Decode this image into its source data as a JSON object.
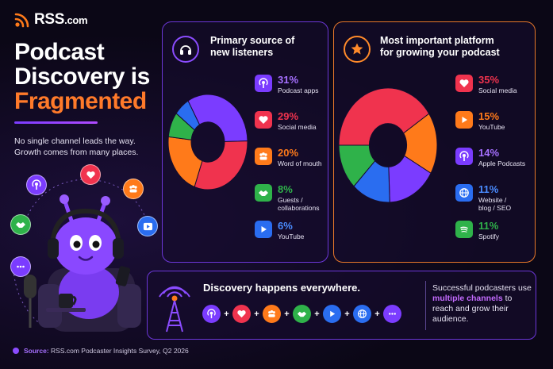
{
  "brand": {
    "name": "RSS",
    "suffix": ".com"
  },
  "title": {
    "line1": "Podcast",
    "line2": "Discovery is",
    "line3": "Fragmented"
  },
  "subtitle": "No single channel leads the way. Growth comes from many places.",
  "colors": {
    "purple": "#7b3cff",
    "red": "#f0334e",
    "orange": "#ff7a1a",
    "green": "#2fb24a",
    "blue": "#2a6df0",
    "accent_orange": "#ff7a2a"
  },
  "chart_data": [
    {
      "type": "pie",
      "title": "Primary source of new listeners",
      "categories": [
        "Podcast apps",
        "Social media",
        "Word of mouth",
        "Guests / collaborations",
        "YouTube"
      ],
      "values": [
        31,
        29,
        20,
        8,
        6
      ],
      "value_labels": [
        "31%",
        "29%",
        "20%",
        "8%",
        "6%"
      ],
      "colors": [
        "#7b3cff",
        "#f0334e",
        "#ff7a1a",
        "#2fb24a",
        "#2a6df0"
      ],
      "icons": [
        "podcast-icon",
        "heart-icon",
        "people-icon",
        "handshake-icon",
        "play-icon"
      ]
    },
    {
      "type": "pie",
      "title": "Most important platform for growing your podcast",
      "categories": [
        "Social media",
        "YouTube",
        "Apple Podcasts",
        "Website / blog / SEO",
        "Spotify"
      ],
      "values": [
        35,
        15,
        14,
        11,
        11
      ],
      "value_labels": [
        "35%",
        "15%",
        "14%",
        "11%",
        "11%"
      ],
      "colors": [
        "#f0334e",
        "#ff7a1a",
        "#7b3cff",
        "#2a6df0",
        "#2fb24a"
      ],
      "icons": [
        "heart-icon",
        "play-icon",
        "podcast-icon",
        "globe-icon",
        "spotify-icon"
      ]
    }
  ],
  "panel1": {
    "title_l1": "Primary source of",
    "title_l2": "new listeners",
    "items": [
      {
        "value": "31%",
        "label_l1": "Podcast apps",
        "label_l2": ""
      },
      {
        "value": "29%",
        "label_l1": "Social media",
        "label_l2": ""
      },
      {
        "value": "20%",
        "label_l1": "Word of mouth",
        "label_l2": ""
      },
      {
        "value": "8%",
        "label_l1": "Guests /",
        "label_l2": "collaborations"
      },
      {
        "value": "6%",
        "label_l1": "YouTube",
        "label_l2": ""
      }
    ]
  },
  "panel2": {
    "title_l1": "Most important platform",
    "title_l2": "for growing your podcast",
    "items": [
      {
        "value": "35%",
        "label_l1": "Social media",
        "label_l2": ""
      },
      {
        "value": "15%",
        "label_l1": "YouTube",
        "label_l2": ""
      },
      {
        "value": "14%",
        "label_l1": "Apple Podcasts",
        "label_l2": ""
      },
      {
        "value": "11%",
        "label_l1": "Website /",
        "label_l2": "blog / SEO"
      },
      {
        "value": "11%",
        "label_l1": "Spotify",
        "label_l2": ""
      }
    ]
  },
  "banner": {
    "title": "Discovery happens everywhere.",
    "text_pre": "Successful podcasters use ",
    "text_highlight": "multiple channels",
    "text_post": " to reach and grow their audience.",
    "chain_icons": [
      "podcast-icon",
      "heart-icon",
      "people-icon",
      "handshake-icon",
      "play-icon",
      "globe-icon",
      "chat-icon"
    ]
  },
  "source": {
    "label": "Source:",
    "text": "RSS.com Podcaster Insights Survey, Q2 2026"
  }
}
